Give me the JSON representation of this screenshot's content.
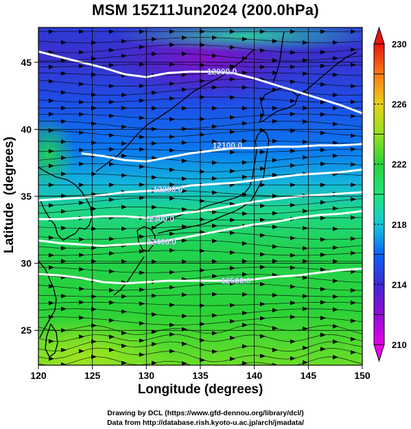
{
  "title": "MSM 15Z11Jun2024 (200.0hPa)",
  "chart_data": {
    "type": "heatmap",
    "title": "MSM 15Z11Jun2024 (200.0hPa)",
    "xlabel": "Longitude (degrees)",
    "ylabel": "Latitude  (degrees)",
    "xlim": [
      120,
      150
    ],
    "ylim": [
      22.4,
      47.6
    ],
    "xticks": [
      120,
      125,
      130,
      135,
      140,
      145,
      150
    ],
    "yticks": [
      25,
      30,
      35,
      40,
      45
    ],
    "grid": true,
    "field": "temperature (shaded) with geopotential height contours and wind streamlines",
    "colorbar": {
      "min": 210,
      "max": 230,
      "tick_labels": [
        210,
        214,
        218,
        222,
        226,
        230
      ],
      "colors": {
        "210": "#e600e6",
        "213": "#6a1ad0",
        "214": "#3c28d2",
        "216": "#0a64ff",
        "218": "#14c8d6",
        "220": "#1ee678",
        "222": "#28d23c",
        "224": "#96e11e",
        "226": "#e6d214",
        "228": "#ff7814",
        "230": "#e61414"
      }
    },
    "contours": [
      {
        "label": "12000.0",
        "label_lon": 137.0,
        "label_lat": 44.3,
        "points": [
          [
            120,
            45.8
          ],
          [
            122,
            45.4
          ],
          [
            124,
            45.0
          ],
          [
            126,
            44.6
          ],
          [
            128,
            44.1
          ],
          [
            130,
            43.9
          ],
          [
            132,
            44.2
          ],
          [
            134,
            44.3
          ],
          [
            136,
            44.3
          ],
          [
            138,
            44.2
          ],
          [
            140,
            43.8
          ],
          [
            142,
            43.3
          ],
          [
            144,
            42.8
          ],
          [
            146,
            42.3
          ],
          [
            148,
            41.8
          ],
          [
            150,
            41.2
          ]
        ]
      },
      {
        "label": "12100.0",
        "label_lon": 137.5,
        "label_lat": 38.8,
        "points": [
          [
            124,
            38.2
          ],
          [
            126,
            38.0
          ],
          [
            128,
            37.7
          ],
          [
            130,
            37.6
          ],
          [
            132,
            37.9
          ],
          [
            134,
            38.2
          ],
          [
            136,
            38.4
          ],
          [
            138,
            38.6
          ],
          [
            140,
            38.6
          ],
          [
            142,
            38.7
          ],
          [
            144,
            38.7
          ],
          [
            146,
            38.8
          ],
          [
            148,
            38.8
          ],
          [
            150,
            38.9
          ]
        ]
      },
      {
        "label": "12200.0",
        "label_lon": 132.0,
        "label_lat": 35.5,
        "points": [
          [
            120,
            34.7
          ],
          [
            122,
            34.8
          ],
          [
            124,
            34.9
          ],
          [
            126,
            35.1
          ],
          [
            128,
            35.3
          ],
          [
            130,
            35.4
          ],
          [
            132,
            35.5
          ],
          [
            134,
            35.8
          ],
          [
            136,
            35.9
          ],
          [
            138,
            36.0
          ],
          [
            140,
            36.2
          ],
          [
            142,
            36.4
          ],
          [
            144,
            36.6
          ],
          [
            146,
            36.7
          ],
          [
            148,
            36.8
          ],
          [
            150,
            37.0
          ]
        ]
      },
      {
        "label": "12300.0",
        "label_lon": 131.2,
        "label_lat": 33.3,
        "points": [
          [
            120,
            33.3
          ],
          [
            122,
            33.3
          ],
          [
            124,
            33.4
          ],
          [
            126,
            33.5
          ],
          [
            128,
            33.5
          ],
          [
            130,
            33.4
          ],
          [
            132,
            33.6
          ],
          [
            134,
            33.8
          ],
          [
            136,
            34.0
          ],
          [
            138,
            34.3
          ],
          [
            140,
            34.6
          ],
          [
            142,
            34.8
          ],
          [
            144,
            35.0
          ],
          [
            146,
            35.1
          ],
          [
            148,
            35.2
          ],
          [
            150,
            35.3
          ]
        ]
      },
      {
        "label": "12400.0",
        "label_lon": 131.4,
        "label_lat": 31.6,
        "points": [
          [
            120,
            31.7
          ],
          [
            122,
            31.5
          ],
          [
            124,
            31.4
          ],
          [
            126,
            31.3
          ],
          [
            128,
            31.4
          ],
          [
            130,
            31.5
          ],
          [
            132,
            31.7
          ],
          [
            134,
            32.0
          ],
          [
            136,
            32.3
          ],
          [
            138,
            32.6
          ],
          [
            140,
            32.9
          ],
          [
            142,
            33.1
          ],
          [
            144,
            33.4
          ],
          [
            146,
            33.6
          ],
          [
            148,
            33.7
          ],
          [
            150,
            33.9
          ]
        ]
      },
      {
        "label": "12500.0",
        "label_lon": 138.3,
        "label_lat": 28.7,
        "points": [
          [
            120,
            29.2
          ],
          [
            122,
            29.1
          ],
          [
            124,
            28.9
          ],
          [
            126,
            28.6
          ],
          [
            128,
            28.5
          ],
          [
            130,
            28.6
          ],
          [
            132,
            28.7
          ],
          [
            134,
            28.7
          ],
          [
            136,
            28.7
          ],
          [
            138,
            28.7
          ],
          [
            140,
            28.8
          ],
          [
            142,
            29.0
          ],
          [
            144,
            29.1
          ],
          [
            146,
            29.3
          ],
          [
            148,
            29.5
          ],
          [
            150,
            29.6
          ]
        ]
      }
    ]
  },
  "credits": {
    "line1": "Drawing by DCL (https://www.gfd-dennou.org/library/dcl/)",
    "line2": "Data from http://database.rish.kyoto-u.ac.jp/arch/jmadata/"
  }
}
